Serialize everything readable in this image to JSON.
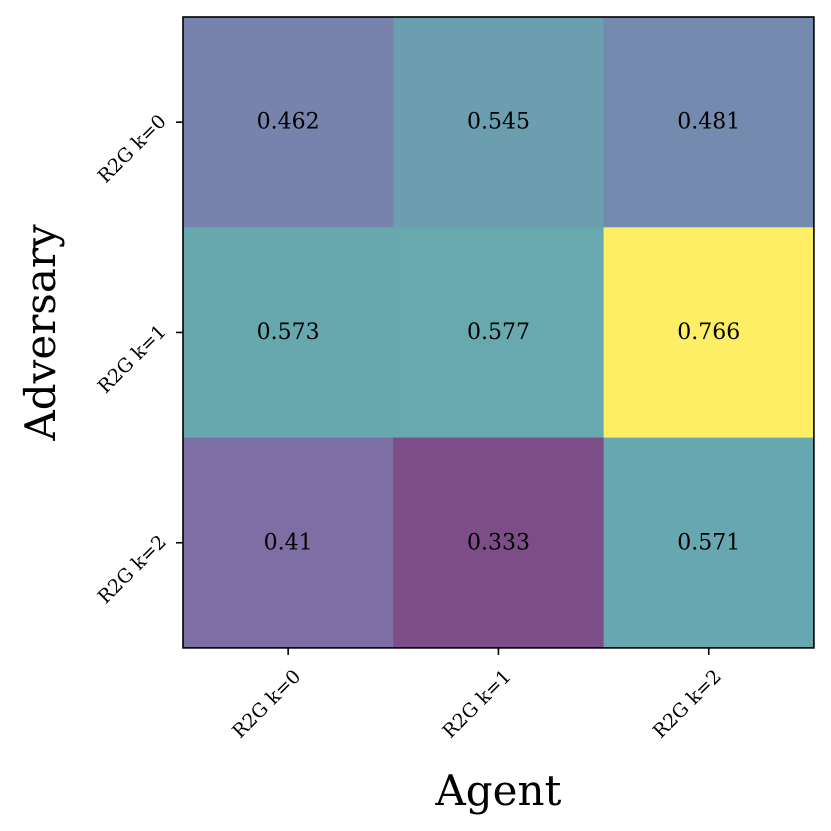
{
  "chart_data": {
    "type": "heatmap",
    "title": "",
    "xlabel": "Agent",
    "ylabel": "Adversary",
    "x_categories": [
      "R2G k=0",
      "R2G k=1",
      "R2G k=2"
    ],
    "y_categories": [
      "R2G k=0",
      "R2G k=1",
      "R2G k=2"
    ],
    "values": [
      [
        0.462,
        0.545,
        0.481
      ],
      [
        0.573,
        0.577,
        0.766
      ],
      [
        0.41,
        0.333,
        0.571
      ]
    ],
    "value_labels": [
      [
        "0.462",
        "0.545",
        "0.481"
      ],
      [
        "0.573",
        "0.577",
        "0.766"
      ],
      [
        "0.41",
        "0.333",
        "0.571"
      ]
    ],
    "colormap": "viridis",
    "cell_alpha": 0.7,
    "grid": false,
    "legend": "none"
  }
}
